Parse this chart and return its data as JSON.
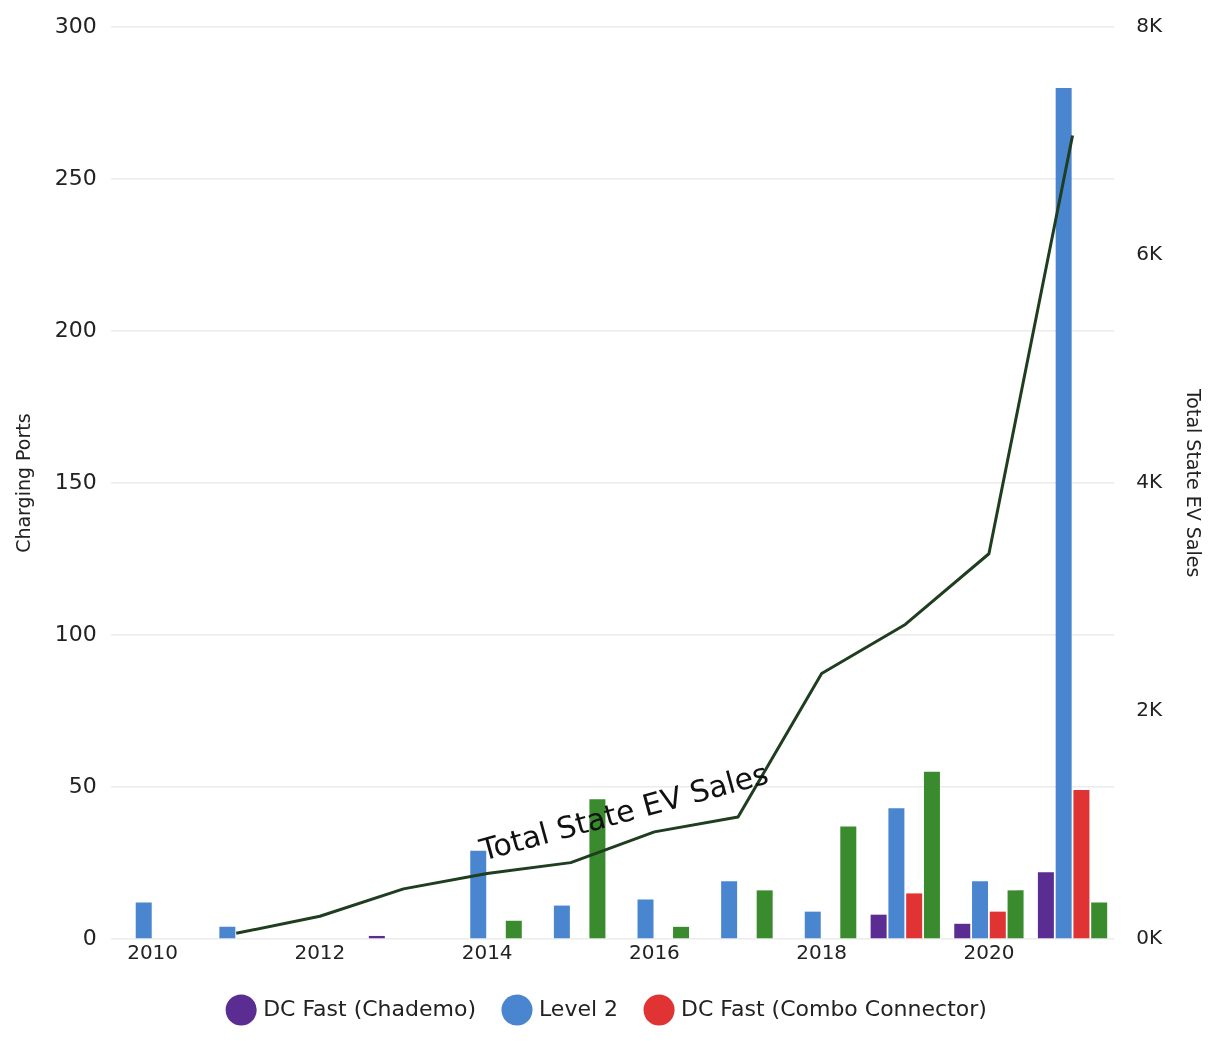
{
  "chart_data": {
    "type": "bar",
    "ylabel": "Charging Ports",
    "y2label": "Total State EV Sales",
    "categories": [
      "2010",
      null,
      "2012",
      null,
      "2014",
      null,
      "2016",
      null,
      "2018",
      null,
      "2020",
      null
    ],
    "series": [
      {
        "name": "DC Fast (Chademo)",
        "color": "#5b2c91",
        "values": [
          0,
          0,
          0,
          1,
          0,
          0,
          0,
          0,
          0,
          8,
          5,
          22
        ]
      },
      {
        "name": "Level 2",
        "color": "#4a86d0",
        "values": [
          12,
          4,
          0,
          0,
          29,
          11,
          13,
          19,
          9,
          43,
          19,
          280
        ]
      },
      {
        "name": "DC Fast (Combo Connector)",
        "color": "#e03333",
        "values": [
          0,
          0,
          0,
          0,
          0,
          0,
          0,
          0,
          0,
          15,
          9,
          49
        ]
      },
      {
        "color": "#3a8a2e",
        "values": [
          0,
          0,
          0,
          0,
          6,
          46,
          4,
          16,
          37,
          55,
          16,
          12
        ]
      },
      {
        "name": "Total State EV Sales",
        "type": "line",
        "axis": "y2",
        "color": "#1f3d1f",
        "values": [
          null,
          50,
          200,
          440,
          575,
          670,
          940,
          1070,
          2330,
          2760,
          3380,
          7050
        ]
      }
    ],
    "ylim": [
      0,
      300
    ],
    "yticks": [
      0,
      50,
      100,
      150,
      200,
      250,
      300
    ],
    "y2lim": [
      0,
      8000
    ],
    "y2ticks": [
      {
        "value": 0,
        "label": "0K"
      },
      {
        "value": 2000,
        "label": "2K"
      },
      {
        "value": 4000,
        "label": "4K"
      },
      {
        "value": 6000,
        "label": "6K"
      },
      {
        "value": 8000,
        "label": "8K"
      }
    ],
    "grid": "y",
    "legend": "bottom",
    "marker": "none",
    "line_style": "solid"
  }
}
